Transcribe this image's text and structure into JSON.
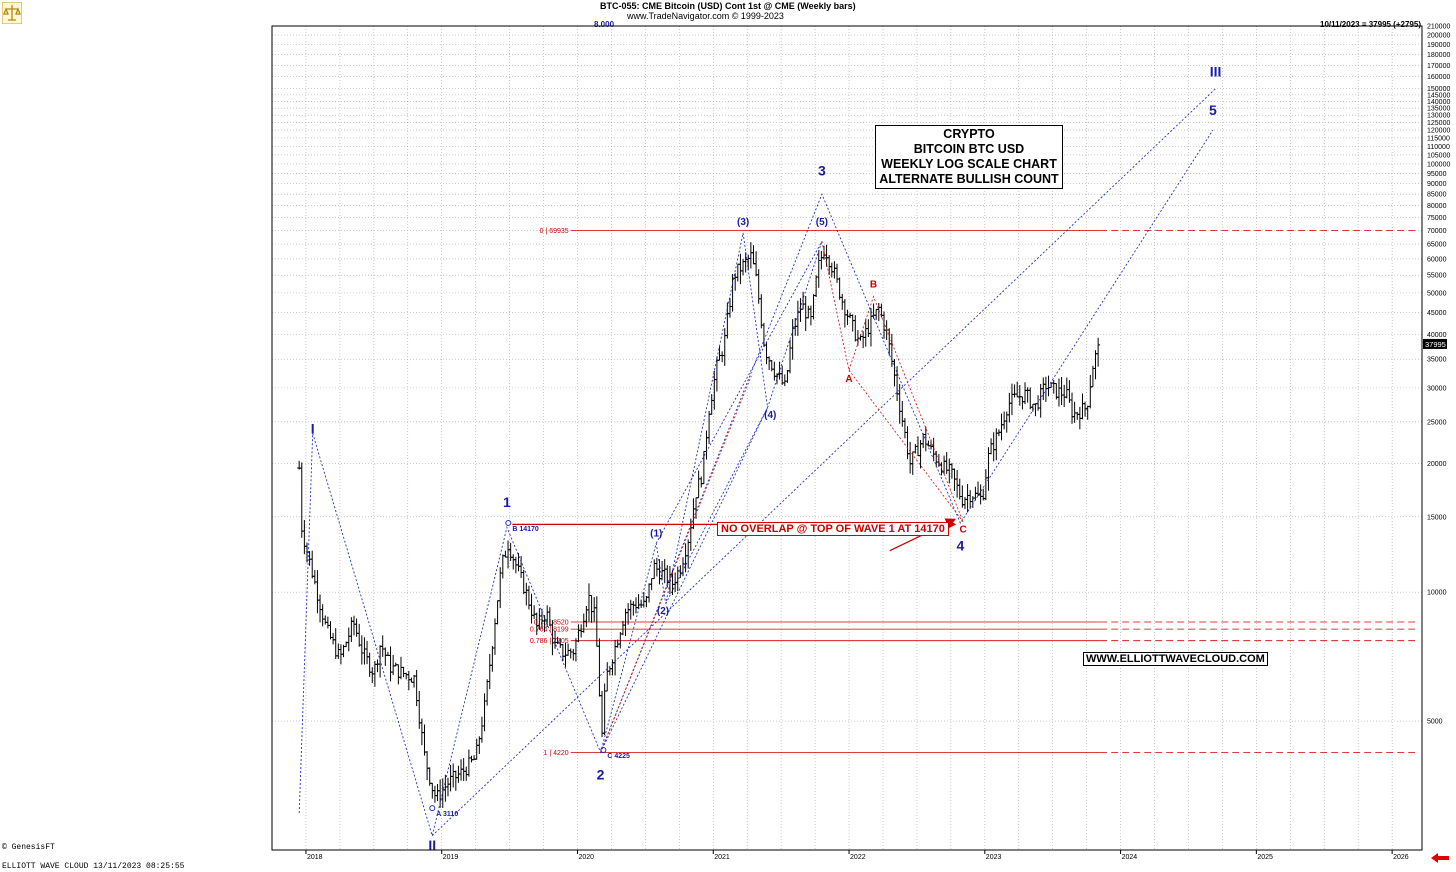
{
  "header": {
    "line1": "BTC-055:  CME Bitcoin (USD) Cont 1st @ CME  (Weekly bars)",
    "line2": "www.TradeNavigator.com © 1999-2023",
    "top_value": "8.000",
    "last_info": "10/11/2023 = 37995 (+2795)"
  },
  "annotation_box": {
    "lines": [
      "CRYPTO",
      "BITCOIN BTC USD",
      "WEEKLY LOG SCALE CHART",
      "ALTERNATE BULLISH COUNT"
    ]
  },
  "website": "WWW.ELLIOTTWAVECLOUD.COM",
  "note": "NO OVERLAP @ TOP OF WAVE 1 AT 14170",
  "footer": {
    "left": "ELLIOTT WAVE CLOUD    13/11/2023 08:25:55",
    "copyright": "© GenesisFT"
  },
  "chart_data": {
    "type": "candlestick",
    "title": "BTC-055:  CME Bitcoin (USD) Cont 1st @ CME  (Weekly bars)",
    "y_scale": "log",
    "ylim": [
      2500,
      210000
    ],
    "y_ticks": [
      5000,
      10000,
      15000,
      20000,
      25000,
      30000,
      35000,
      40000,
      45000,
      50000,
      55000,
      60000,
      65000,
      70000,
      75000,
      80000,
      85000,
      90000,
      95000,
      100000,
      105000,
      110000,
      115000,
      120000,
      125000,
      130000,
      135000,
      140000,
      145000,
      150000,
      160000,
      170000,
      180000,
      190000,
      200000,
      210000
    ],
    "x_ticks": [
      "2018",
      "2019",
      "2020",
      "2021",
      "2022",
      "2023",
      "2024",
      "2025",
      "2026"
    ],
    "last_price": "37995",
    "price_path": [
      [
        2017.95,
        19500
      ],
      [
        2017.97,
        14000
      ],
      [
        2018.05,
        11000
      ],
      [
        2018.1,
        9500
      ],
      [
        2018.15,
        8200
      ],
      [
        2018.25,
        7000
      ],
      [
        2018.35,
        8500
      ],
      [
        2018.42,
        7200
      ],
      [
        2018.5,
        6500
      ],
      [
        2018.55,
        7600
      ],
      [
        2018.62,
        6700
      ],
      [
        2018.7,
        6500
      ],
      [
        2018.8,
        6300
      ],
      [
        2018.87,
        4200
      ],
      [
        2018.93,
        3500
      ],
      [
        2018.96,
        3300
      ],
      [
        2019.05,
        3600
      ],
      [
        2019.15,
        3800
      ],
      [
        2019.25,
        4100
      ],
      [
        2019.32,
        5500
      ],
      [
        2019.38,
        8000
      ],
      [
        2019.44,
        11500
      ],
      [
        2019.49,
        13000
      ],
      [
        2019.55,
        11500
      ],
      [
        2019.62,
        10000
      ],
      [
        2019.7,
        8300
      ],
      [
        2019.77,
        9000
      ],
      [
        2019.83,
        7500
      ],
      [
        2019.9,
        7200
      ],
      [
        2019.97,
        7300
      ],
      [
        2020.03,
        8500
      ],
      [
        2020.08,
        9800
      ],
      [
        2020.13,
        8700
      ],
      [
        2020.18,
        4600
      ],
      [
        2020.21,
        6300
      ],
      [
        2020.28,
        7500
      ],
      [
        2020.35,
        9000
      ],
      [
        2020.42,
        9400
      ],
      [
        2020.5,
        9300
      ],
      [
        2020.56,
        11500
      ],
      [
        2020.63,
        11000
      ],
      [
        2020.7,
        10500
      ],
      [
        2020.76,
        11500
      ],
      [
        2020.82,
        13500
      ],
      [
        2020.87,
        17000
      ],
      [
        2020.92,
        19000
      ],
      [
        2020.97,
        27000
      ],
      [
        2021.03,
        34000
      ],
      [
        2021.08,
        38000
      ],
      [
        2021.15,
        55000
      ],
      [
        2021.22,
        58000
      ],
      [
        2021.28,
        61000
      ],
      [
        2021.32,
        53000
      ],
      [
        2021.38,
        37000
      ],
      [
        2021.45,
        33000
      ],
      [
        2021.53,
        30000
      ],
      [
        2021.58,
        40000
      ],
      [
        2021.65,
        47000
      ],
      [
        2021.72,
        43000
      ],
      [
        2021.77,
        57000
      ],
      [
        2021.82,
        64000
      ],
      [
        2021.88,
        57000
      ],
      [
        2021.95,
        48000
      ],
      [
        2022.02,
        42000
      ],
      [
        2022.08,
        38000
      ],
      [
        2022.15,
        42000
      ],
      [
        2022.22,
        46000
      ],
      [
        2022.28,
        40000
      ],
      [
        2022.35,
        30000
      ],
      [
        2022.45,
        20000
      ],
      [
        2022.55,
        23000
      ],
      [
        2022.62,
        21000
      ],
      [
        2022.7,
        19500
      ],
      [
        2022.75,
        19000
      ],
      [
        2022.83,
        16500
      ],
      [
        2022.9,
        17000
      ],
      [
        2022.98,
        16500
      ],
      [
        2023.03,
        21000
      ],
      [
        2023.1,
        23500
      ],
      [
        2023.17,
        27500
      ],
      [
        2023.23,
        28500
      ],
      [
        2023.3,
        29000
      ],
      [
        2023.37,
        27000
      ],
      [
        2023.45,
        30500
      ],
      [
        2023.52,
        29500
      ],
      [
        2023.6,
        29000
      ],
      [
        2023.65,
        26000
      ],
      [
        2023.7,
        26500
      ],
      [
        2023.75,
        27000
      ],
      [
        2023.8,
        34500
      ],
      [
        2023.85,
        37995
      ]
    ],
    "horizontal_levels": [
      {
        "label": "0 | 69935",
        "value": 69935
      },
      {
        "label": "0.75 | 8520",
        "value": 8520
      },
      {
        "label": "0.764 | 8199",
        "value": 8199
      },
      {
        "label": "0.786 | 7705",
        "value": 7705
      },
      {
        "label": "1 | 4220",
        "value": 4220
      }
    ],
    "wave_labels": [
      {
        "text": "I",
        "x": 2018.05,
        "y": 23500,
        "color": "#1a1aaa"
      },
      {
        "text": "II",
        "x": 2018.93,
        "y": 2500,
        "color": "#1a1aaa"
      },
      {
        "text": "1",
        "x": 2019.48,
        "y": 15800,
        "color": "#1a1aaa"
      },
      {
        "text": "2",
        "x": 2020.17,
        "y": 3650,
        "color": "#1a1aaa"
      },
      {
        "text": "3",
        "x": 2021.8,
        "y": 94000,
        "color": "#1a1aaa"
      },
      {
        "text": "4",
        "x": 2022.82,
        "y": 12500,
        "color": "#1a1aaa"
      },
      {
        "text": "5",
        "x": 2024.68,
        "y": 130000,
        "color": "#1a1aaa"
      },
      {
        "text": "III",
        "x": 2024.7,
        "y": 160000,
        "color": "#1a1aaa"
      },
      {
        "text": "(1)",
        "x": 2020.58,
        "y": 13500,
        "color": "#1a1aaa"
      },
      {
        "text": "(2)",
        "x": 2020.63,
        "y": 8900,
        "color": "#1a1aaa"
      },
      {
        "text": "(3)",
        "x": 2021.22,
        "y": 72000,
        "color": "#1a1aaa"
      },
      {
        "text": "(4)",
        "x": 2021.42,
        "y": 25500,
        "color": "#1a1aaa"
      },
      {
        "text": "(5)",
        "x": 2021.8,
        "y": 72000,
        "color": "#1a1aaa"
      },
      {
        "text": "A",
        "x": 2022.0,
        "y": 31000,
        "color": "#cc0000"
      },
      {
        "text": "B",
        "x": 2022.18,
        "y": 51500,
        "color": "#cc0000"
      },
      {
        "text": "C",
        "x": 2022.84,
        "y": 13800,
        "color": "#cc0000"
      }
    ],
    "point_labels": [
      {
        "text": "A 3110",
        "x": 2018.96,
        "y": 3000
      },
      {
        "text": "B 14170",
        "x": 2019.52,
        "y": 13900
      },
      {
        "text": "C 4225",
        "x": 2020.22,
        "y": 4100
      }
    ],
    "blue_paths": [
      [
        [
          2017.95,
          3050
        ],
        [
          2018.05,
          23500
        ],
        [
          2018.93,
          2700
        ],
        [
          2019.48,
          14170
        ],
        [
          2020.17,
          4225
        ],
        [
          2021.8,
          85000
        ],
        [
          2022.82,
          14500
        ],
        [
          2024.68,
          120000
        ]
      ],
      [
        [
          2018.93,
          2700
        ],
        [
          2024.7,
          150000
        ]
      ],
      [
        [
          2020.17,
          4225
        ],
        [
          2020.58,
          13000
        ],
        [
          2020.65,
          9400
        ],
        [
          2021.22,
          69000
        ],
        [
          2021.4,
          27000
        ],
        [
          2021.8,
          66000
        ]
      ],
      [
        [
          2020.17,
          4225
        ],
        [
          2021.4,
          27000
        ]
      ],
      [
        [
          2020.58,
          13000
        ],
        [
          2021.8,
          66000
        ]
      ],
      [
        [
          2020.65,
          9400
        ],
        [
          2021.4,
          27000
        ]
      ]
    ],
    "red_paths": [
      [
        [
          2021.8,
          66000
        ],
        [
          2022.0,
          33000
        ],
        [
          2022.18,
          49000
        ],
        [
          2022.84,
          14600
        ]
      ],
      [
        [
          2020.17,
          4225
        ],
        [
          2021.28,
          32000
        ]
      ],
      [
        [
          2022.0,
          33000
        ],
        [
          2022.84,
          14600
        ]
      ]
    ],
    "arrows": [
      {
        "from": [
          2019.52,
          14400
        ],
        "to": [
          2022.78,
          14400
        ],
        "color": "#cc0000"
      },
      {
        "from": [
          2022.3,
          12500
        ],
        "to": [
          2022.78,
          14800
        ],
        "color": "#cc0000"
      }
    ]
  }
}
